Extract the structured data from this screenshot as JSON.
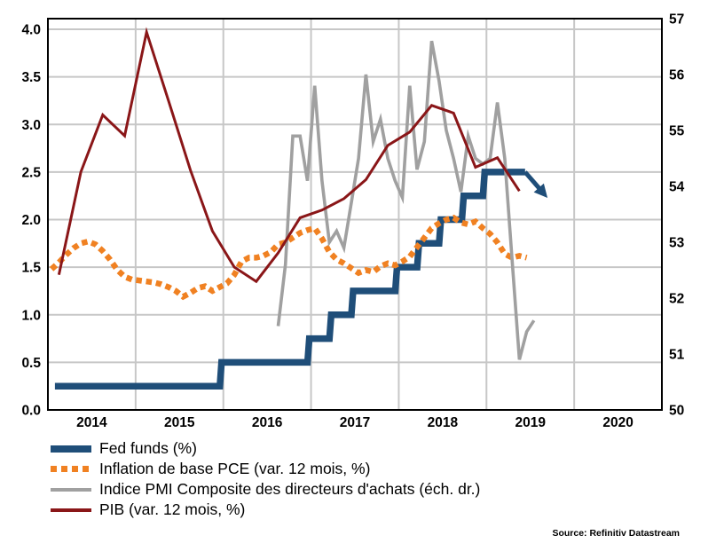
{
  "source": "Source: Refinitiv Datastream",
  "chart_data": {
    "type": "line",
    "title": "",
    "grid_color": "#c7c7c7",
    "border_color": "#000000",
    "x_axis": {
      "labels": [
        "2014",
        "2015",
        "2016",
        "2017",
        "2018",
        "2019",
        "2020"
      ],
      "range": [
        2014,
        2021
      ],
      "gridlines_at": [
        2015,
        2016,
        2017,
        2018,
        2019,
        2020
      ]
    },
    "y_left": {
      "tick_labels": [
        "0.0",
        "0.5",
        "1.0",
        "1.5",
        "2.0",
        "2.5",
        "3.0",
        "3.5",
        "4.0"
      ],
      "tick_values": [
        0,
        0.5,
        1,
        1.5,
        2,
        2.5,
        3,
        3.5,
        4
      ],
      "range": [
        0,
        4.11
      ]
    },
    "y_right": {
      "tick_labels": [
        "50",
        "51",
        "52",
        "53",
        "54",
        "55",
        "56",
        "57"
      ],
      "tick_values": [
        50,
        51,
        52,
        53,
        54,
        55,
        56,
        57
      ],
      "range": [
        50,
        57
      ]
    },
    "series": [
      {
        "id": "fed-funds",
        "name": "Fed funds (%)",
        "axis": "left",
        "style": "step",
        "color": "#1F4E79",
        "stroke_width": 7.5,
        "points": [
          [
            2014.08,
            0.25
          ],
          [
            2015.96,
            0.25
          ],
          [
            2015.98,
            0.5
          ],
          [
            2016.96,
            0.5
          ],
          [
            2016.98,
            0.75
          ],
          [
            2017.21,
            0.75
          ],
          [
            2017.23,
            1.0
          ],
          [
            2017.46,
            1.0
          ],
          [
            2017.48,
            1.25
          ],
          [
            2017.96,
            1.25
          ],
          [
            2017.98,
            1.5
          ],
          [
            2018.21,
            1.5
          ],
          [
            2018.23,
            1.75
          ],
          [
            2018.46,
            1.75
          ],
          [
            2018.48,
            2.0
          ],
          [
            2018.72,
            2.0
          ],
          [
            2018.74,
            2.25
          ],
          [
            2018.96,
            2.25
          ],
          [
            2018.98,
            2.5
          ],
          [
            2019.44,
            2.5
          ]
        ]
      },
      {
        "id": "pce",
        "name": "Inflation de base PCE (var. 12 mois, %)",
        "axis": "left",
        "style": "dotted",
        "color": "#F08122",
        "stroke_width": 6.5,
        "start": 2014.0417,
        "interval": 0.083333,
        "values": [
          1.48,
          1.55,
          1.63,
          1.7,
          1.75,
          1.77,
          1.74,
          1.67,
          1.58,
          1.47,
          1.4,
          1.37,
          1.36,
          1.35,
          1.34,
          1.32,
          1.29,
          1.25,
          1.19,
          1.23,
          1.28,
          1.3,
          1.25,
          1.29,
          1.33,
          1.42,
          1.56,
          1.6,
          1.6,
          1.62,
          1.66,
          1.74,
          1.76,
          1.81,
          1.86,
          1.89,
          1.91,
          1.8,
          1.66,
          1.58,
          1.54,
          1.49,
          1.44,
          1.47,
          1.45,
          1.51,
          1.54,
          1.52,
          1.56,
          1.61,
          1.71,
          1.81,
          1.91,
          1.96,
          2.0,
          2.02,
          1.97,
          1.95,
          1.98,
          1.91,
          1.85,
          1.76,
          1.64,
          1.6,
          1.62,
          1.6
        ]
      },
      {
        "id": "pmi",
        "name": "Indice PMI Composite des directeurs d'achats (éch. dr.)",
        "axis": "right",
        "style": "solid",
        "color": "#A0A0A0",
        "stroke_width": 3.6,
        "start": 2016.625,
        "interval": 0.083333,
        "values": [
          51.5,
          52.6,
          54.9,
          54.9,
          54.1,
          55.8,
          54.1,
          53.0,
          53.2,
          52.9,
          53.7,
          54.5,
          56.0,
          54.8,
          55.2,
          54.5,
          54.1,
          53.8,
          55.8,
          54.3,
          54.8,
          56.6,
          55.9,
          55.0,
          54.5,
          53.9,
          54.9,
          54.5,
          54.4,
          54.5,
          55.5,
          54.5,
          52.7,
          50.9,
          51.4,
          51.6
        ]
      },
      {
        "id": "pib",
        "name": "PIB (var. 12 mois, %)",
        "axis": "left",
        "style": "solid",
        "color": "#8A1618",
        "stroke_width": 3,
        "start": 2014.125,
        "interval": 0.25,
        "values": [
          1.42,
          2.5,
          3.1,
          2.88,
          3.97,
          3.25,
          2.52,
          1.88,
          1.5,
          1.35,
          1.65,
          2.02,
          2.1,
          2.22,
          2.42,
          2.78,
          2.92,
          3.2,
          3.12,
          2.55,
          2.65,
          2.3
        ]
      }
    ],
    "annotation": {
      "type": "arrow",
      "color": "#1F4E79",
      "from": [
        2019.44,
        2.5
      ],
      "to": [
        2019.61,
        2.32
      ]
    }
  },
  "legend": {
    "items": [
      "Fed funds (%)",
      "Inflation de base PCE (var. 12 mois, %)",
      "Indice PMI Composite des directeurs d'achats (éch. dr.)",
      "PIB (var. 12 mois, %)"
    ]
  }
}
